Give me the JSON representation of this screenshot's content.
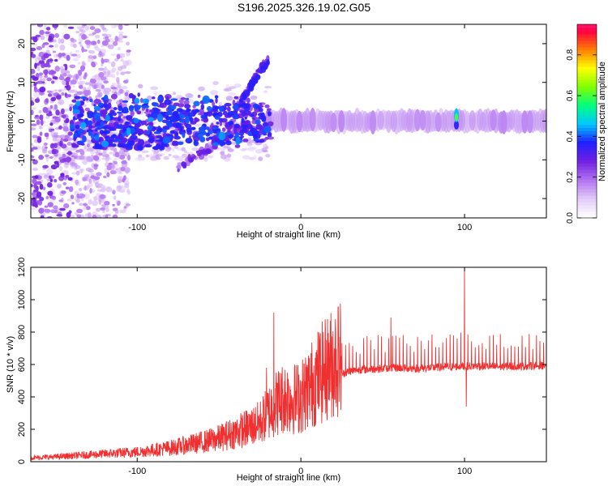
{
  "title": "S196.2025.326.19.02.G05",
  "chart_data": [
    {
      "type": "heatmap",
      "name": "spectrogram",
      "xlabel": "Height of straight line (km)",
      "ylabel": "Frequency (Hz)",
      "xlim": [
        -165,
        150
      ],
      "ylim": [
        -25,
        25
      ],
      "xticks": [
        -100,
        0,
        100
      ],
      "yticks": [
        -20,
        -10,
        0,
        10,
        20
      ],
      "colorbar": {
        "label": "Normalized spectral amplitude",
        "range": [
          0,
          1
        ],
        "ticks": [
          0.0,
          0.2,
          0.4,
          0.6,
          0.8
        ],
        "tick_labels": [
          "0.0",
          "0.2",
          "0.4",
          "0.6",
          "0.8"
        ],
        "colormap": [
          "#ffffff",
          "#e0c8f8",
          "#b070f0",
          "#7020e0",
          "#2020ff",
          "#00c8ff",
          "#00ff80",
          "#80ff00",
          "#ffff00",
          "#ff8000",
          "#ff0040",
          "#ff40c0"
        ]
      },
      "features": {
        "carrier_line_hz": 0,
        "carrier_from_km": -20,
        "peak_amplitude_segments_km": [
          [
            20,
            30
          ],
          [
            45,
            48
          ],
          [
            82,
            88
          ],
          [
            96,
            110
          ]
        ],
        "scattered_energy_range_km": [
          -165,
          -20
        ],
        "branch_up": {
          "from_km": -40,
          "to_km": -20,
          "from_hz": 3,
          "to_hz": 16
        },
        "branch_down": {
          "from_km": -75,
          "to_km": -30,
          "from_hz": -12,
          "to_hz": 0
        }
      }
    },
    {
      "type": "line",
      "name": "snr",
      "xlabel": "Height of straight line (km)",
      "ylabel": "SNR (10 * v/v)",
      "xlim": [
        -165,
        150
      ],
      "ylim": [
        0,
        1200
      ],
      "xticks": [
        -100,
        0,
        100
      ],
      "yticks": [
        0,
        200,
        400,
        600,
        800,
        1000,
        1200
      ],
      "color": "#f03030",
      "series": [
        {
          "name": "SNR",
          "x": [
            -165,
            -150,
            -140,
            -130,
            -120,
            -110,
            -100,
            -90,
            -80,
            -70,
            -60,
            -50,
            -40,
            -30,
            -25,
            -20,
            -15,
            -10,
            -5,
            0,
            5,
            10,
            15,
            20,
            25,
            30,
            40,
            50,
            60,
            70,
            80,
            90,
            100,
            110,
            120,
            130,
            140,
            150
          ],
          "values": [
            20,
            25,
            30,
            35,
            40,
            45,
            50,
            60,
            70,
            85,
            100,
            120,
            150,
            180,
            200,
            250,
            300,
            330,
            320,
            330,
            380,
            430,
            470,
            510,
            540,
            560,
            570,
            575,
            580,
            575,
            580,
            585,
            590,
            590,
            585,
            590,
            590,
            595
          ]
        }
      ],
      "spikes": [
        {
          "x": -16.5,
          "value": 920
        },
        {
          "x": -21,
          "value": 580
        },
        {
          "x": 55,
          "value": 890
        },
        {
          "x": 100,
          "value": 1200
        },
        {
          "x": 101,
          "value": 340
        }
      ]
    }
  ]
}
